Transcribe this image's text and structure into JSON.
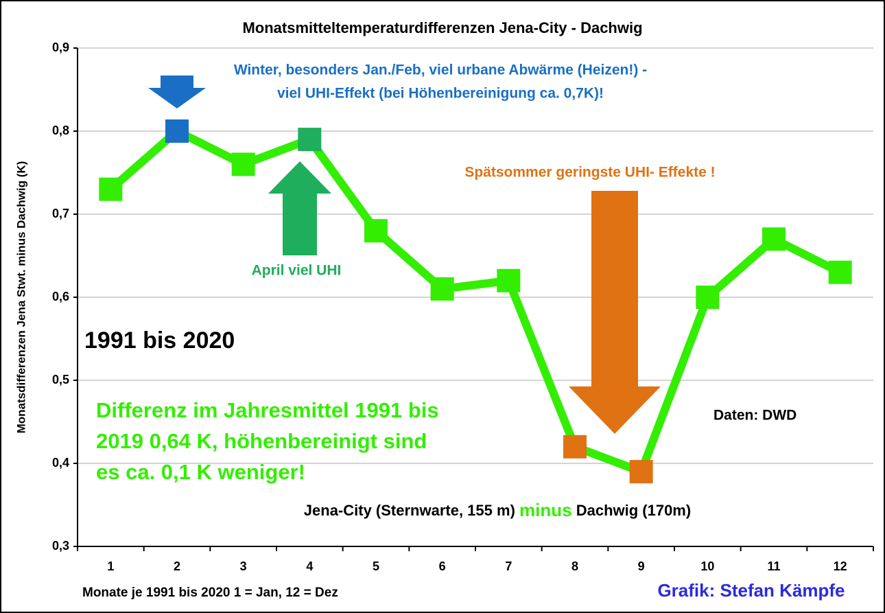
{
  "chart_data": {
    "type": "line",
    "title": "Monatsmitteltemperaturdifferenzen Jena-City - Dachwig",
    "y_label": "Monatsdifferenzen Jena Stwt. minus Dachwig (K)",
    "x_label": "Monate je 1991 bis 2020   1 = Jan, 12 = Dez",
    "credit": "Grafik: Stefan Kämpfe",
    "categories": [
      "1",
      "2",
      "3",
      "4",
      "5",
      "6",
      "7",
      "8",
      "9",
      "10",
      "11",
      "12"
    ],
    "values": [
      0.73,
      0.8,
      0.76,
      0.79,
      0.68,
      0.61,
      0.62,
      0.42,
      0.39,
      0.6,
      0.67,
      0.63
    ],
    "color": "#33ee00",
    "marker_colors": [
      "#33ee00",
      "#1a6fc4",
      "#33ee00",
      "#1fae5c",
      "#33ee00",
      "#33ee00",
      "#33ee00",
      "#e07214",
      "#e07214",
      "#33ee00",
      "#33ee00",
      "#33ee00"
    ],
    "ylim": [
      0.3,
      0.9
    ],
    "yticks": [
      {
        "value": 0.3,
        "label": "0,3"
      },
      {
        "value": 0.4,
        "label": "0,4"
      },
      {
        "value": 0.5,
        "label": "0,5"
      },
      {
        "value": 0.6,
        "label": "0,6"
      },
      {
        "value": 0.7,
        "label": "0,7"
      },
      {
        "value": 0.8,
        "label": "0,8"
      },
      {
        "value": 0.9,
        "label": "0,9"
      }
    ],
    "grid": true,
    "annotations": {
      "winter": [
        "Winter, besonders Jan./Feb, viel urbane Abwärme (Heizen!) -",
        "viel UHI-Effekt (bei Höhenbereinigung ca. 0,7K)!"
      ],
      "april": "April viel UHI",
      "summer": "Spätsommer geringste UHI- Effekte !",
      "period": "1991 bis 2020",
      "annual": [
        "Differenz im Jahresmittel 1991 bis",
        "2019 0,64 K, höhenbereinigt sind",
        "es ca. 0,1 K weniger!"
      ],
      "source": "Daten: DWD",
      "stations": [
        "Jena-City (Sternwarte, 155 m) ",
        "minus",
        " Dachwig (170m)"
      ]
    }
  }
}
